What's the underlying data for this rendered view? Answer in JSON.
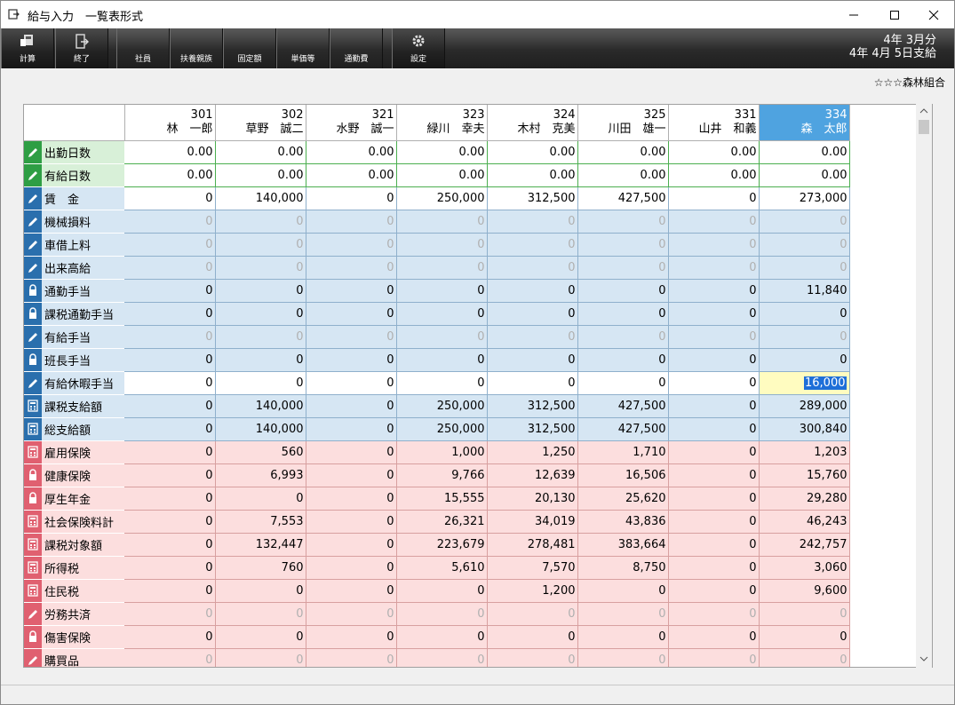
{
  "window": {
    "title": "給与入力　一覧表形式"
  },
  "toolbar": {
    "buttons": [
      {
        "label": "計算",
        "icon": "calculator-icon"
      },
      {
        "label": "終了",
        "icon": "exit-door-icon"
      },
      {
        "label": "社員",
        "icon": ""
      },
      {
        "label": "扶養親族",
        "icon": ""
      },
      {
        "label": "固定額",
        "icon": ""
      },
      {
        "label": "単価等",
        "icon": ""
      },
      {
        "label": "通勤費",
        "icon": ""
      },
      {
        "label": "設定",
        "icon": "gear-icon"
      }
    ],
    "pay_month": "4年 3月分",
    "pay_date": "4年 4月 5日支給"
  },
  "company": "☆☆☆森林組合",
  "employees": [
    {
      "code": "301",
      "name": "林　一郎"
    },
    {
      "code": "302",
      "name": "草野　誠二"
    },
    {
      "code": "321",
      "name": "水野　誠一"
    },
    {
      "code": "323",
      "name": "緑川　幸夫"
    },
    {
      "code": "324",
      "name": "木村　克美"
    },
    {
      "code": "325",
      "name": "川田　雄一"
    },
    {
      "code": "331",
      "name": "山井　和義"
    },
    {
      "code": "334",
      "name": "森　太郎"
    }
  ],
  "rows": [
    {
      "label": "出勤日数",
      "group": "green",
      "icon": "pencil-icon",
      "values": [
        "0.00",
        "0.00",
        "0.00",
        "0.00",
        "0.00",
        "0.00",
        "0.00",
        "0.00"
      ]
    },
    {
      "label": "有給日数",
      "group": "green",
      "icon": "pencil-icon",
      "values": [
        "0.00",
        "0.00",
        "0.00",
        "0.00",
        "0.00",
        "0.00",
        "0.00",
        "0.00"
      ]
    },
    {
      "label": "賃　金",
      "group": "blue",
      "icon": "pencil-icon",
      "white": true,
      "values": [
        "0",
        "140,000",
        "0",
        "250,000",
        "312,500",
        "427,500",
        "0",
        "273,000"
      ]
    },
    {
      "label": "機械損料",
      "group": "blue",
      "icon": "pencil-icon",
      "dim": true,
      "values": [
        "0",
        "0",
        "0",
        "0",
        "0",
        "0",
        "0",
        "0"
      ]
    },
    {
      "label": "車借上料",
      "group": "blue",
      "icon": "pencil-icon",
      "dim": true,
      "values": [
        "0",
        "0",
        "0",
        "0",
        "0",
        "0",
        "0",
        "0"
      ]
    },
    {
      "label": "出来高給",
      "group": "blue",
      "icon": "pencil-icon",
      "dim": true,
      "values": [
        "0",
        "0",
        "0",
        "0",
        "0",
        "0",
        "0",
        "0"
      ]
    },
    {
      "label": "通勤手当",
      "group": "blue",
      "icon": "lock-icon",
      "values": [
        "0",
        "0",
        "0",
        "0",
        "0",
        "0",
        "0",
        "11,840"
      ]
    },
    {
      "label": "課税通勤手当",
      "group": "blue",
      "icon": "lock-icon",
      "values": [
        "0",
        "0",
        "0",
        "0",
        "0",
        "0",
        "0",
        "0"
      ]
    },
    {
      "label": "有給手当",
      "group": "blue",
      "icon": "pencil-icon",
      "dim": true,
      "values": [
        "0",
        "0",
        "0",
        "0",
        "0",
        "0",
        "0",
        "0"
      ]
    },
    {
      "label": "班長手当",
      "group": "blue",
      "icon": "lock-icon",
      "values": [
        "0",
        "0",
        "0",
        "0",
        "0",
        "0",
        "0",
        "0"
      ]
    },
    {
      "label": "有給休暇手当",
      "group": "blue",
      "icon": "pencil-icon",
      "white": true,
      "values": [
        "0",
        "0",
        "0",
        "0",
        "0",
        "0",
        "0",
        "16,000"
      ]
    },
    {
      "label": "課税支給額",
      "group": "blue",
      "icon": "calculator-icon",
      "values": [
        "0",
        "140,000",
        "0",
        "250,000",
        "312,500",
        "427,500",
        "0",
        "289,000"
      ]
    },
    {
      "label": "総支給額",
      "group": "blue",
      "icon": "calculator-icon",
      "values": [
        "0",
        "140,000",
        "0",
        "250,000",
        "312,500",
        "427,500",
        "0",
        "300,840"
      ]
    },
    {
      "label": "雇用保険",
      "group": "pink",
      "icon": "calculator-icon",
      "values": [
        "0",
        "560",
        "0",
        "1,000",
        "1,250",
        "1,710",
        "0",
        "1,203"
      ]
    },
    {
      "label": "健康保険",
      "group": "pink",
      "icon": "lock-icon",
      "values": [
        "0",
        "6,993",
        "0",
        "9,766",
        "12,639",
        "16,506",
        "0",
        "15,760"
      ]
    },
    {
      "label": "厚生年金",
      "group": "pink",
      "icon": "lock-icon",
      "values": [
        "0",
        "0",
        "0",
        "15,555",
        "20,130",
        "25,620",
        "0",
        "29,280"
      ]
    },
    {
      "label": "社会保険料計",
      "group": "pink",
      "icon": "calculator-icon",
      "values": [
        "0",
        "7,553",
        "0",
        "26,321",
        "34,019",
        "43,836",
        "0",
        "46,243"
      ]
    },
    {
      "label": "課税対象額",
      "group": "pink",
      "icon": "calculator-icon",
      "values": [
        "0",
        "132,447",
        "0",
        "223,679",
        "278,481",
        "383,664",
        "0",
        "242,757"
      ]
    },
    {
      "label": "所得税",
      "group": "pink",
      "icon": "calculator-icon",
      "values": [
        "0",
        "760",
        "0",
        "5,610",
        "7,570",
        "8,750",
        "0",
        "3,060"
      ]
    },
    {
      "label": "住民税",
      "group": "pink",
      "icon": "calculator-icon",
      "values": [
        "0",
        "0",
        "0",
        "0",
        "1,200",
        "0",
        "0",
        "9,600"
      ]
    },
    {
      "label": "労務共済",
      "group": "pink",
      "icon": "pencil-icon",
      "dim": true,
      "values": [
        "0",
        "0",
        "0",
        "0",
        "0",
        "0",
        "0",
        "0"
      ]
    },
    {
      "label": "傷害保険",
      "group": "pink",
      "icon": "lock-icon",
      "values": [
        "0",
        "0",
        "0",
        "0",
        "0",
        "0",
        "0",
        "0"
      ]
    },
    {
      "label": "購買品",
      "group": "pink",
      "icon": "pencil-icon",
      "dim": true,
      "values": [
        "0",
        "0",
        "0",
        "0",
        "0",
        "0",
        "0",
        "0"
      ]
    }
  ],
  "selected_column": 7,
  "editing_cell": {
    "row": 10,
    "col": 7
  }
}
